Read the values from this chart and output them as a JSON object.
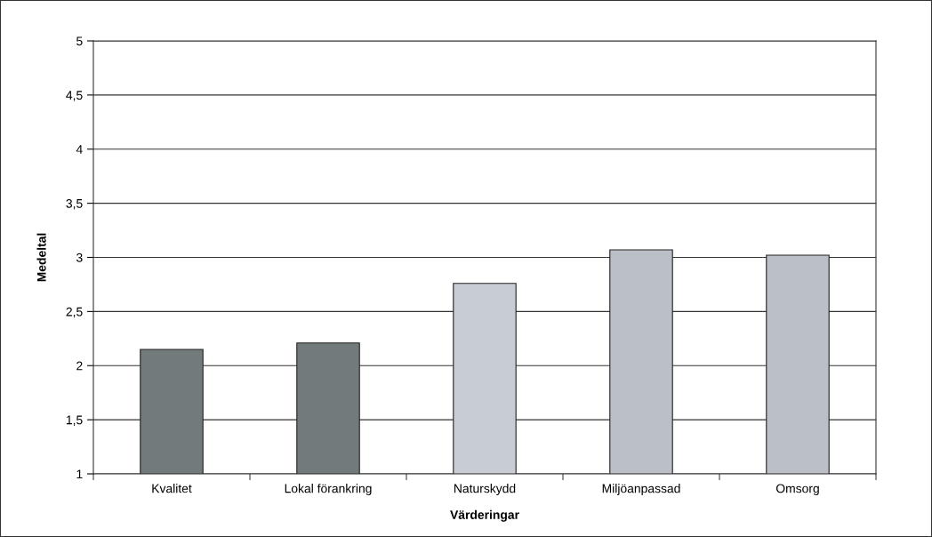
{
  "chart_data": {
    "type": "bar",
    "xlabel": "Värderingar",
    "ylabel": "Medeltal",
    "categories": [
      "Kvalitet",
      "Lokal förankring",
      "Naturskydd",
      "Miljöanpassad",
      "Omsorg"
    ],
    "values": [
      2.15,
      2.21,
      2.76,
      3.07,
      3.02
    ],
    "colors": [
      "#737a7c",
      "#737a7c",
      "#c8ccd4",
      "#bbbfc6",
      "#bbbfc6"
    ],
    "ylim": [
      1,
      5
    ],
    "yticks": [
      1,
      {
        "value": 1.5,
        "label": "1,5"
      },
      2,
      {
        "value": 2.5,
        "label": "2,5"
      },
      3,
      {
        "value": 3.5,
        "label": "3,5"
      },
      4,
      {
        "value": 4.5,
        "label": "4,5"
      },
      5
    ],
    "grid": "y",
    "legend": false
  }
}
